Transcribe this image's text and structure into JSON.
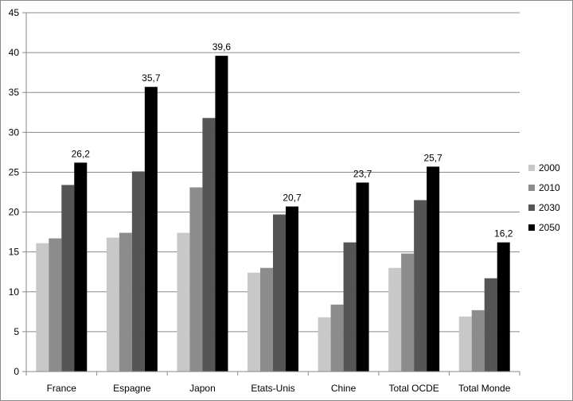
{
  "chart_data": {
    "type": "bar",
    "categories": [
      "France",
      "Espagne",
      "Japon",
      "Etats-Unis",
      "Chine",
      "Total OCDE",
      "Total Monde"
    ],
    "series": [
      {
        "name": "2000",
        "color": "#c8c8c8",
        "values": [
          16.1,
          16.8,
          17.4,
          12.4,
          6.8,
          13.0,
          6.9
        ]
      },
      {
        "name": "2010",
        "color": "#8c8c8c",
        "values": [
          16.7,
          17.4,
          23.1,
          13.0,
          8.4,
          14.8,
          7.7
        ]
      },
      {
        "name": "2030",
        "color": "#555555",
        "values": [
          23.4,
          25.1,
          31.8,
          19.7,
          16.2,
          21.5,
          11.7
        ]
      },
      {
        "name": "2050",
        "color": "#000000",
        "values": [
          26.2,
          35.7,
          39.6,
          20.7,
          23.7,
          25.7,
          16.2
        ]
      }
    ],
    "data_labels": [
      "26,2",
      "35,7",
      "39,6",
      "20,7",
      "23,7",
      "25,7",
      "16,2"
    ],
    "y_ticks": [
      "0",
      "5",
      "10",
      "15",
      "20",
      "25",
      "30",
      "35",
      "40",
      "45"
    ],
    "ylim": [
      0,
      45
    ],
    "grid": true,
    "legend_position": "right"
  }
}
